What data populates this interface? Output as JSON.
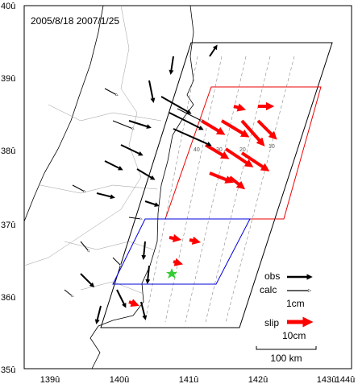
{
  "header": {
    "dates": "2005/8/18  2007/1/25"
  },
  "axes": {
    "latitude_labels": [
      "40û",
      "39û",
      "38û",
      "37û",
      "36û",
      "35û"
    ],
    "longitude_labels": [
      "139û",
      "140û",
      "141û",
      "142û",
      "143û",
      "144û"
    ]
  },
  "contour_labels": [
    "10",
    "20",
    "30",
    "40"
  ],
  "legend": {
    "obs": "obs",
    "calc": "calc",
    "displacement_scale": "1cm",
    "slip": "slip",
    "slip_scale": "10cm"
  },
  "scale_bar": "100 km"
}
